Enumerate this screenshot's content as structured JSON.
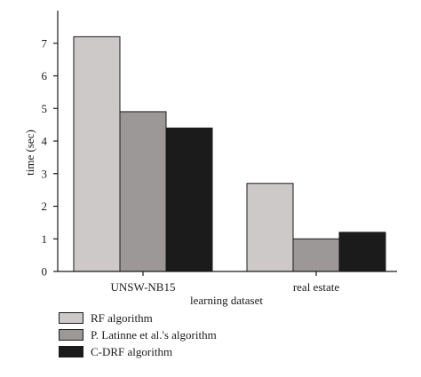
{
  "chart_data": {
    "type": "bar",
    "categories": [
      "UNSW-NB15",
      "real estate"
    ],
    "series": [
      {
        "name": "RF algorithm",
        "values": [
          7.2,
          2.7
        ],
        "color": "#cdc9c9"
      },
      {
        "name": "P. Latinne et al.'s algorithm",
        "values": [
          4.9,
          1.0
        ],
        "color": "#9c9898"
      },
      {
        "name": "C-DRF algorithm",
        "values": [
          4.4,
          1.2
        ],
        "color": "#1b1b1b"
      }
    ],
    "xlabel": "learning dataset",
    "ylabel": "time (sec)",
    "ylim": [
      0,
      8
    ],
    "yticks": [
      "0",
      "1",
      "2",
      "3",
      "4",
      "5",
      "6",
      "7"
    ],
    "grid": false,
    "legend_position": "bottom-left"
  }
}
